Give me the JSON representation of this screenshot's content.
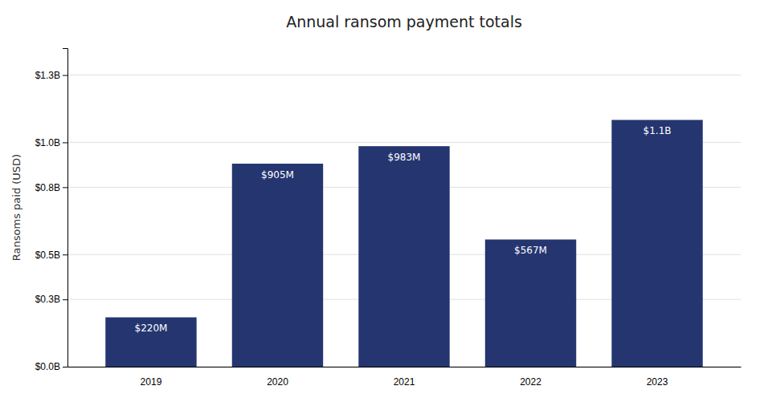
{
  "chart_data": {
    "type": "bar",
    "title": "Annual ransom payment totals",
    "categories": [
      "2019",
      "2020",
      "2021",
      "2022",
      "2023"
    ],
    "values": [
      0.22,
      0.905,
      0.983,
      0.567,
      1.1
    ],
    "value_labels": [
      "$220M",
      "$905M",
      "$983M",
      "$567M",
      "$1.1B"
    ],
    "color": "#253570",
    "ylabel": "Ransoms paid (USD)",
    "ylim": [
      0,
      1.42
    ],
    "yticks": [
      {
        "value": 0.0,
        "label": "$0.0B"
      },
      {
        "value": 0.3,
        "label": "$0.3B"
      },
      {
        "value": 0.5,
        "label": "$0.5B"
      },
      {
        "value": 0.8,
        "label": "$0.8B"
      },
      {
        "value": 1.0,
        "label": "$1.0B"
      },
      {
        "value": 1.3,
        "label": "$1.3B"
      }
    ],
    "grid": true,
    "data_labels": true
  }
}
